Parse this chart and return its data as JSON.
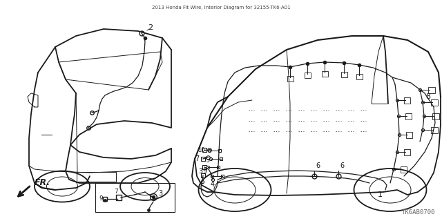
{
  "title": "2013 Honda Fit Wire, Interior Diagram for 32155-TK6-A01",
  "background_color": "#ffffff",
  "line_color": "#1a1a1a",
  "diagram_code": "TK6AB0700",
  "fig_width": 6.4,
  "fig_height": 3.2,
  "dpi": 100
}
